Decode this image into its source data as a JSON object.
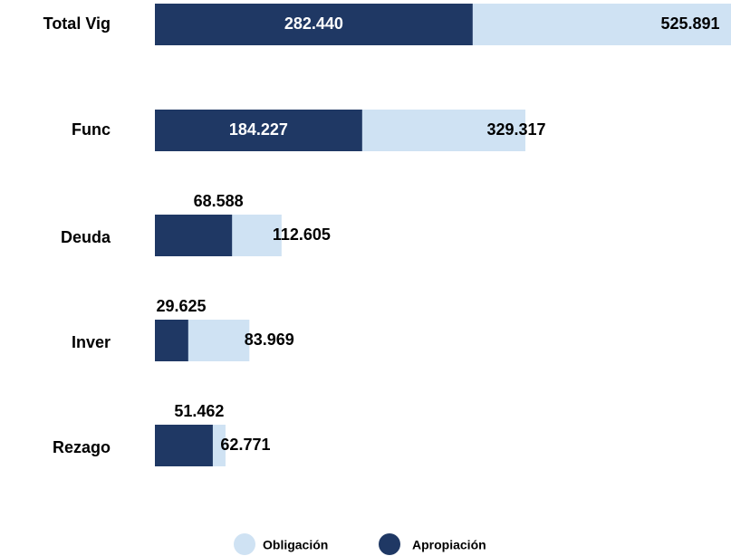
{
  "chart_data": {
    "type": "bar",
    "categories": [
      "Total Vig",
      "Func",
      "Deuda",
      "Inver",
      "Rezago"
    ],
    "series": [
      {
        "name": "Obligación",
        "color": "#cfe2f3",
        "values": [
          525.891,
          329.317,
          112.605,
          83.969,
          62.771
        ],
        "value_labels": [
          "525.891",
          "329.317",
          "112.605",
          "83.969",
          "62.771"
        ]
      },
      {
        "name": "Apropiación",
        "color": "#1f3864",
        "values": [
          282.44,
          184.227,
          68.588,
          29.625,
          51.462
        ],
        "value_labels": [
          "282.440",
          "184.227",
          "68.588",
          "29.625",
          "51.462"
        ]
      }
    ]
  }
}
